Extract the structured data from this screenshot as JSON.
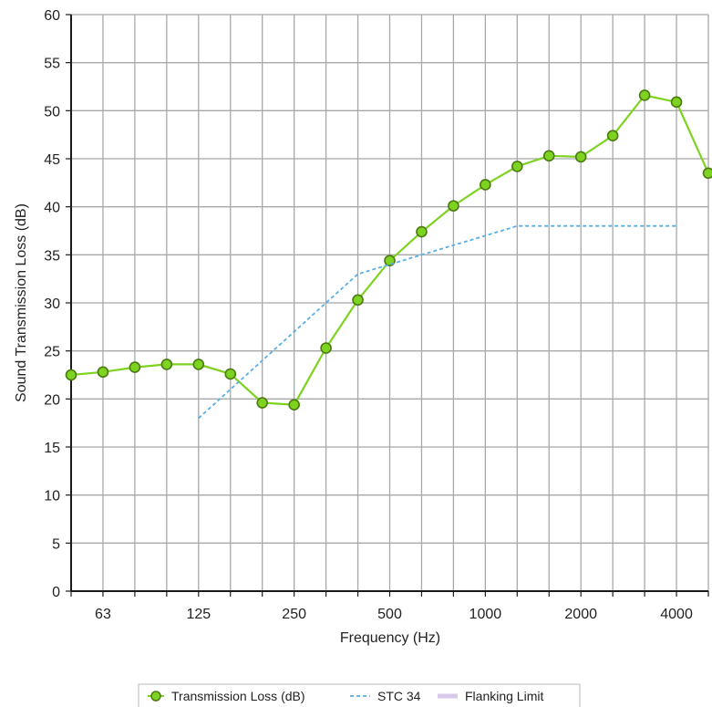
{
  "chart_data": {
    "type": "line",
    "title": "",
    "xlabel": "Frequency (Hz)",
    "ylabel": "Sound Transmission Loss (dB)",
    "ylim": [
      0,
      60
    ],
    "y_ticks": [
      0,
      5,
      10,
      15,
      20,
      25,
      30,
      35,
      40,
      45,
      50,
      55,
      60
    ],
    "x_scale": "log-third-octave",
    "x_bands": [
      50,
      63,
      80,
      100,
      125,
      160,
      200,
      250,
      315,
      400,
      500,
      630,
      800,
      1000,
      1250,
      1600,
      2000,
      2500,
      3150,
      4000,
      5000
    ],
    "x_tick_labels": [
      "63",
      "125",
      "250",
      "500",
      "1000",
      "2000",
      "4000"
    ],
    "x_tick_positions": [
      63,
      125,
      250,
      500,
      1000,
      2000,
      4000
    ],
    "grid": true,
    "legend_position": "bottom-center",
    "series": [
      {
        "name": "Transmission Loss (dB)",
        "style": "line-with-markers",
        "color": "#7ed321",
        "marker_fill": "#7ed321",
        "marker_stroke": "#4a7a10",
        "x": [
          50,
          63,
          80,
          100,
          125,
          160,
          200,
          250,
          315,
          400,
          500,
          630,
          800,
          1000,
          1250,
          1600,
          2000,
          2500,
          3150,
          4000,
          5000
        ],
        "values": [
          22.5,
          22.8,
          23.3,
          23.6,
          23.6,
          22.6,
          19.6,
          19.4,
          25.3,
          30.3,
          34.4,
          37.4,
          40.1,
          42.3,
          44.2,
          45.3,
          45.2,
          47.4,
          51.6,
          50.9,
          43.5
        ]
      },
      {
        "name": "STC 34",
        "style": "dashed",
        "color": "#5aaee3",
        "x": [
          125,
          160,
          200,
          250,
          315,
          400,
          500,
          630,
          800,
          1000,
          1250,
          1600,
          2000,
          2500,
          3150,
          4000
        ],
        "values": [
          18,
          21,
          24,
          27,
          30,
          33,
          34,
          35,
          36,
          37,
          38,
          38,
          38,
          38,
          38,
          38
        ]
      },
      {
        "name": "Flanking Limit",
        "style": "thick-line",
        "color": "#d8c8ea",
        "x": [],
        "values": []
      }
    ]
  },
  "colors": {
    "grid": "#a8a8a8",
    "axis": "#1a1a1a",
    "transmission_loss": "#7ed321",
    "stc": "#5aaee3",
    "flanking": "#d8c8ea"
  }
}
